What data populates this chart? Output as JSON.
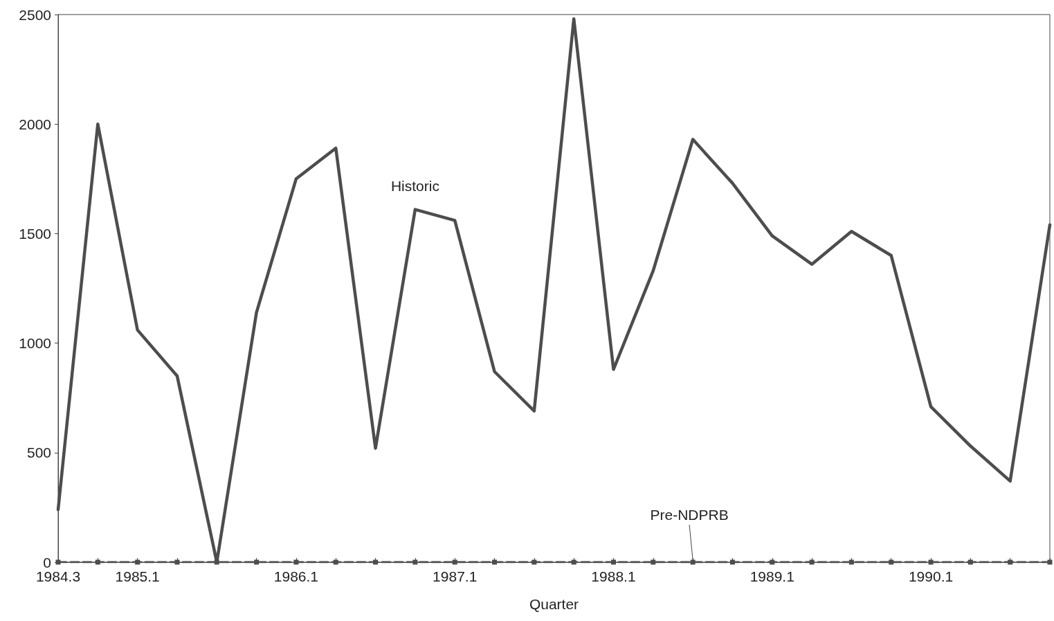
{
  "chart_data": {
    "type": "line",
    "xlabel": "Quarter",
    "categories": [
      "1984.3",
      null,
      "1985.1",
      null,
      null,
      null,
      "1986.1",
      null,
      null,
      null,
      "1987.1",
      null,
      null,
      null,
      "1988.1",
      null,
      null,
      null,
      "1989.1",
      null,
      null,
      null,
      "1990.1",
      null,
      null,
      null
    ],
    "series": [
      {
        "name": "Historic",
        "color": "#4d4d4d",
        "marker": "none",
        "line_style": "solid",
        "values": [
          240,
          2000,
          1060,
          850,
          0,
          1140,
          1750,
          1890,
          520,
          1610,
          1560,
          870,
          690,
          2480,
          880,
          1330,
          1930,
          1730,
          1490,
          1360,
          1510,
          1400,
          710,
          530,
          370,
          1540
        ]
      },
      {
        "name": "Pre-NDPRB",
        "color": "#4d4d4d",
        "marker": "square",
        "line_style": "dashed",
        "values": [
          0,
          0,
          0,
          0,
          0,
          0,
          0,
          0,
          0,
          0,
          0,
          0,
          0,
          0,
          0,
          0,
          0,
          0,
          0,
          0,
          0,
          0,
          0,
          0,
          0,
          0
        ]
      }
    ],
    "ylim": [
      0,
      2500
    ],
    "yticks": [
      0,
      500,
      1000,
      1500,
      2000,
      2500
    ],
    "grid": false,
    "legend": false
  }
}
